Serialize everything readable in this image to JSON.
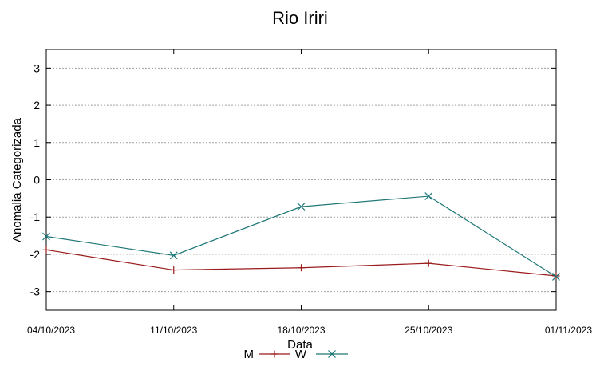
{
  "chart_data": {
    "type": "line",
    "title": "Rio Iriri",
    "xlabel": "Data",
    "ylabel": "Anomalia Categorizada",
    "categories": [
      "04/10/2023",
      "11/10/2023",
      "18/10/2023",
      "25/10/2023",
      "01/11/2023"
    ],
    "yticks": [
      "3",
      "2",
      "1",
      "0",
      "-1",
      "-2",
      "-3"
    ],
    "ylim": [
      -3.5,
      3.5
    ],
    "grid": "horizontal",
    "legend": "bottom-center",
    "series": [
      {
        "name": "M",
        "color": "#9b1b1b",
        "marker": "plus",
        "values": [
          -1.88,
          -2.42,
          -2.36,
          -2.24,
          -2.58
        ]
      },
      {
        "name": "W",
        "color": "#1f7777",
        "marker": "cross",
        "values": [
          -1.52,
          -2.03,
          -0.72,
          -0.44,
          -2.6
        ]
      }
    ]
  }
}
